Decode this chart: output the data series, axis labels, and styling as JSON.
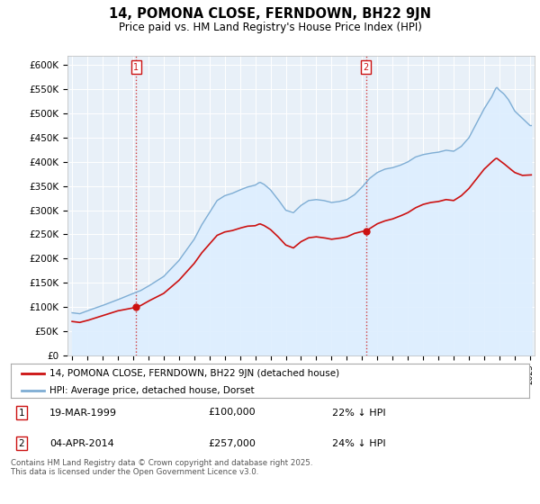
{
  "title": "14, POMONA CLOSE, FERNDOWN, BH22 9JN",
  "subtitle": "Price paid vs. HM Land Registry's House Price Index (HPI)",
  "ylim": [
    0,
    620000
  ],
  "yticks": [
    0,
    50000,
    100000,
    150000,
    200000,
    250000,
    300000,
    350000,
    400000,
    450000,
    500000,
    550000,
    600000
  ],
  "ytick_labels": [
    "£0",
    "£50K",
    "£100K",
    "£150K",
    "£200K",
    "£250K",
    "£300K",
    "£350K",
    "£400K",
    "£450K",
    "£500K",
    "£550K",
    "£600K"
  ],
  "hpi_color": "#7eadd4",
  "hpi_fill_color": "#ddeeff",
  "price_color": "#cc1111",
  "bg_color": "#e8f0f8",
  "grid_color": "#ffffff",
  "legend_label_price": "14, POMONA CLOSE, FERNDOWN, BH22 9JN (detached house)",
  "legend_label_hpi": "HPI: Average price, detached house, Dorset",
  "annotation1_date": "19-MAR-1999",
  "annotation1_price": "£100,000",
  "annotation1_note": "22% ↓ HPI",
  "annotation2_date": "04-APR-2014",
  "annotation2_price": "£257,000",
  "annotation2_note": "24% ↓ HPI",
  "footnote": "Contains HM Land Registry data © Crown copyright and database right 2025.\nThis data is licensed under the Open Government Licence v3.0.",
  "sale1_year": 1999.21,
  "sale1_value": 100000,
  "sale2_year": 2014.25,
  "sale2_value": 257000,
  "xlim_left": 1994.7,
  "xlim_right": 2025.3
}
